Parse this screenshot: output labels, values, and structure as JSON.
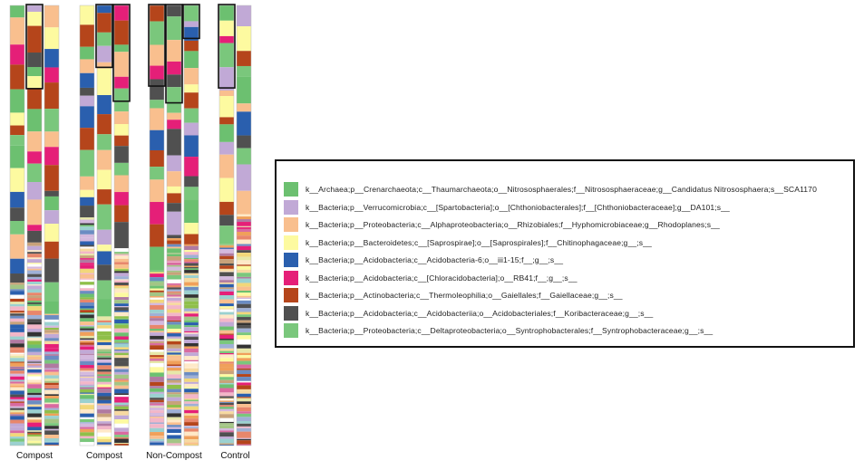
{
  "chart_data": {
    "type": "bar",
    "orientation": "vertical-stacked",
    "groups": [
      {
        "label": "Compost",
        "samples": 3
      },
      {
        "label": "Compost",
        "samples": 3
      },
      {
        "label": "Non-Compost",
        "samples": 3
      },
      {
        "label": "Control",
        "samples": 2
      }
    ],
    "legend_position": "right",
    "series": [
      {
        "name": "k__Archaea;p__Crenarchaeota;c__Thaumarchaeota;o__Nitrososphaerales;f__Nitrososphaeraceae;g__Candidatus Nitrososphaera;s__SCA1170",
        "color": "#6cc070"
      },
      {
        "name": "k__Bacteria;p__Verrucomicrobia;c__[Spartobacteria];o__[Chthoniobacterales];f__[Chthoniobacteraceae];g__DA101;s__",
        "color": "#c1a9d6"
      },
      {
        "name": "k__Bacteria;p__Proteobacteria;c__Alphaproteobacteria;o__Rhizobiales;f__Hyphomicrobiaceae;g__Rhodoplanes;s__",
        "color": "#f9bf8e"
      },
      {
        "name": "k__Bacteria;p__Bacteroidetes;c__[Saprospirae];o__[Saprospirales];f__Chitinophagaceae;g__;s__",
        "color": "#fdfaa0"
      },
      {
        "name": "k__Bacteria;p__Acidobacteria;c__Acidobacteria-6;o__iii1-15;f__;g__;s__",
        "color": "#2a5fae"
      },
      {
        "name": "k__Bacteria;p__Acidobacteria;c__[Chloracidobacteria];o__RB41;f__;g__;s__",
        "color": "#e51f78"
      },
      {
        "name": "k__Bacteria;p__Actinobacteria;c__Thermoleophilia;o__Gaiellales;f__Gaiellaceae;g__;s__",
        "color": "#b5451b"
      },
      {
        "name": "k__Bacteria;p__Acidobacteria;c__Acidobacteriia;o__Acidobacteriales;f__Koribacteraceae;g__;s__",
        "color": "#505050"
      },
      {
        "name": "k__Bacteria;p__Proteobacteria;c__Deltaproteobacteria;o__Syntrophobacterales;f__Syntrophobacteraceae;g__;s__",
        "color": "#7ac77c"
      }
    ],
    "minor_taxa_colors": [
      "#f3b6c8",
      "#ffffff",
      "#f7d9a0",
      "#8fbf4a",
      "#e7e7a8",
      "#b07aa1",
      "#d96aa0",
      "#9bd1d0",
      "#333333",
      "#c8a27a",
      "#f2d77a",
      "#9fb0d6",
      "#e8866b",
      "#a3c585",
      "#ffe9c8",
      "#6b8cc2",
      "#d4b9de",
      "#f0a05a"
    ]
  }
}
